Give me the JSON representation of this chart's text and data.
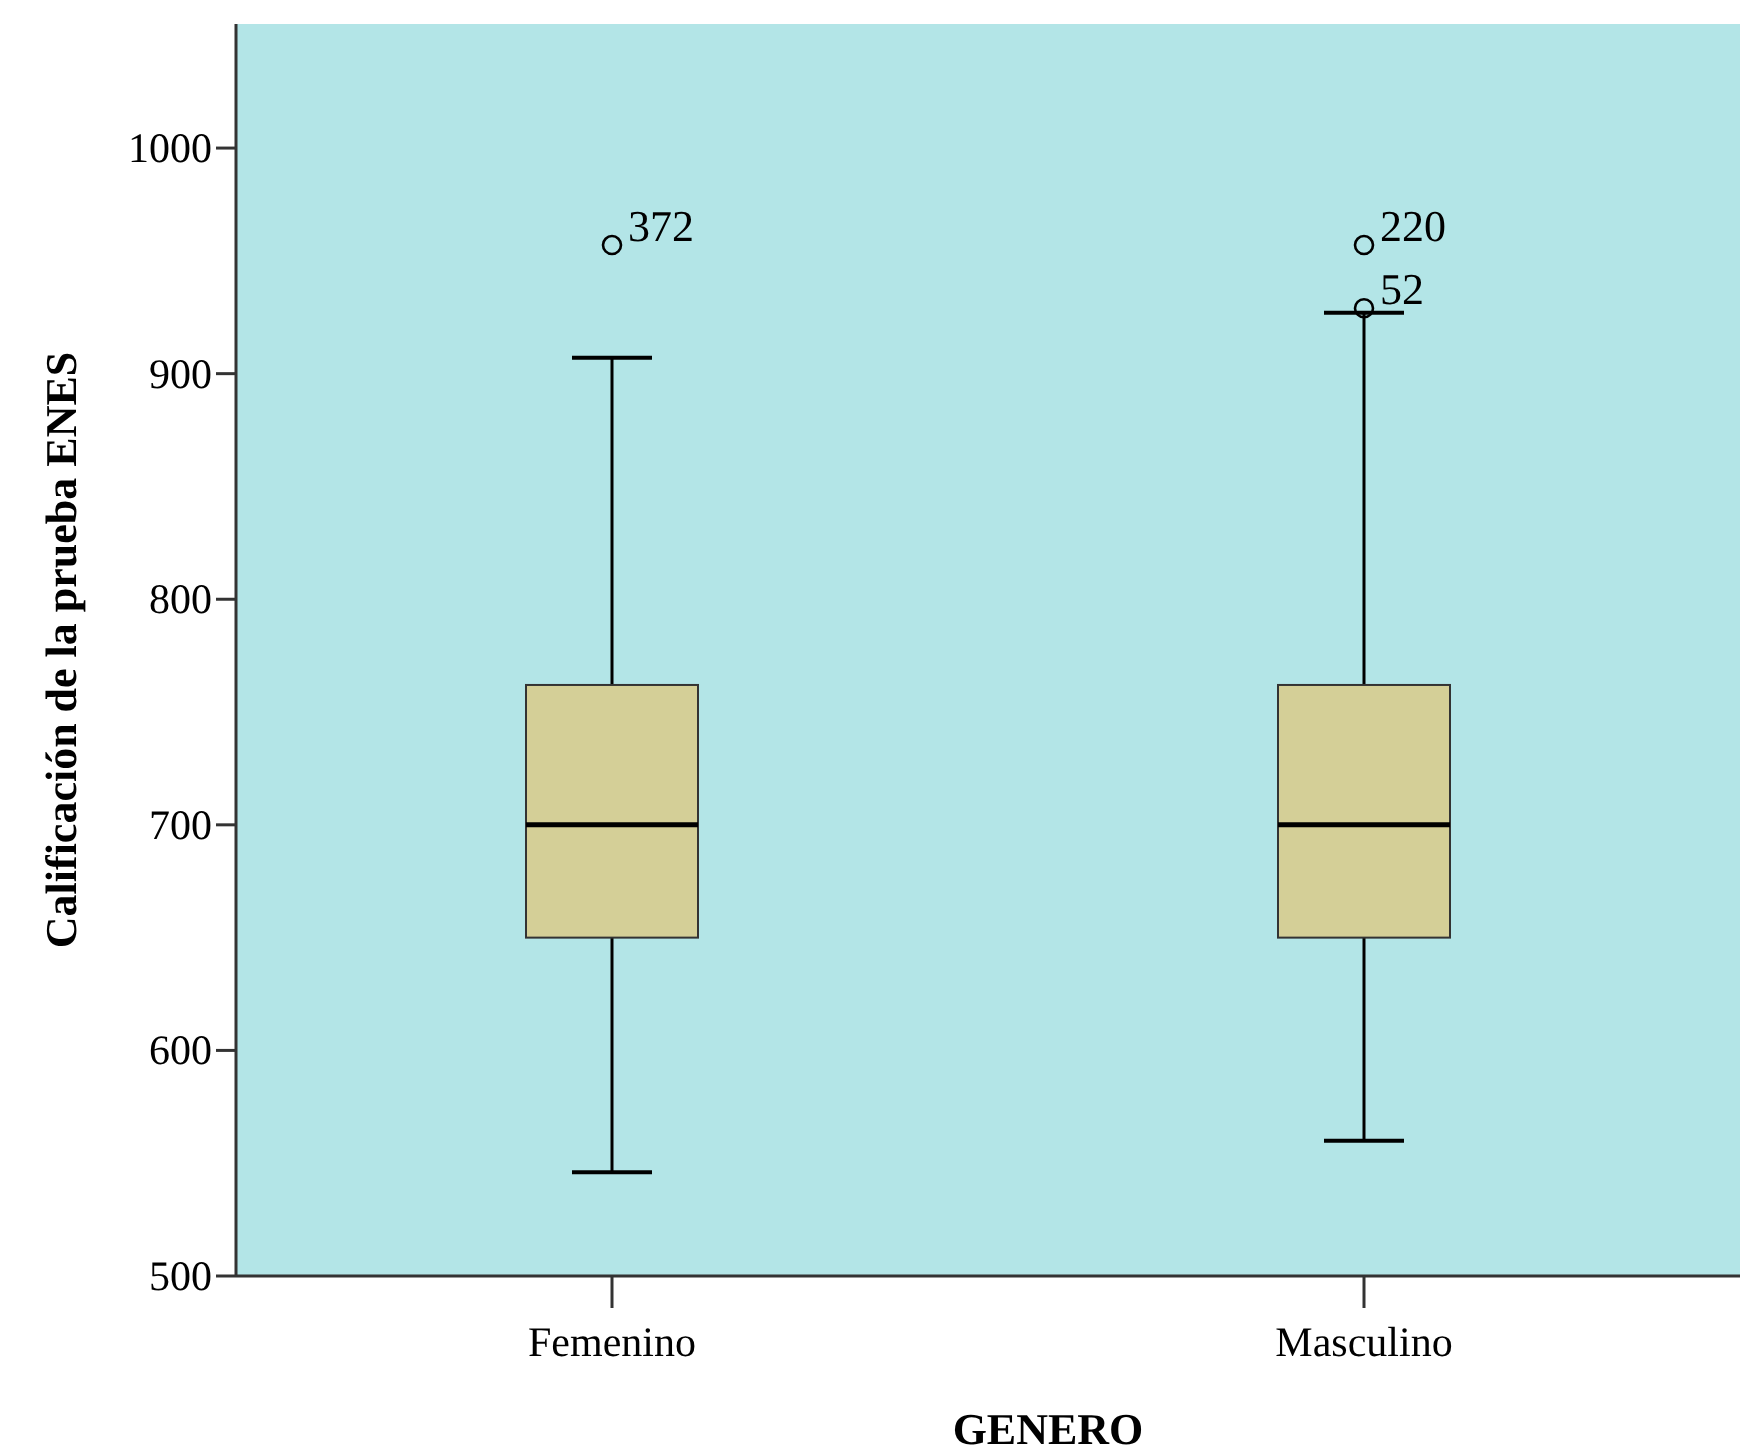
{
  "chart_data": {
    "type": "box",
    "xlabel": "GENERO",
    "ylabel": "Calificación de la prueba ENES",
    "categories": [
      "Femenino",
      "Masculino"
    ],
    "color": "#d4cf97",
    "boxes": [
      {
        "low": 546,
        "q1": 650,
        "median": 700,
        "q3": 762,
        "high": 907,
        "outliers": [
          957
        ]
      },
      {
        "low": 560,
        "q1": 650,
        "median": 700,
        "q3": 762,
        "high": 927,
        "outliers": [
          957,
          929
        ]
      }
    ],
    "annotations": [
      "372",
      "220",
      "52"
    ],
    "ylim": [
      500,
      1055
    ],
    "yticks": [
      500,
      600,
      700,
      800,
      900,
      1000
    ],
    "grid": false
  }
}
